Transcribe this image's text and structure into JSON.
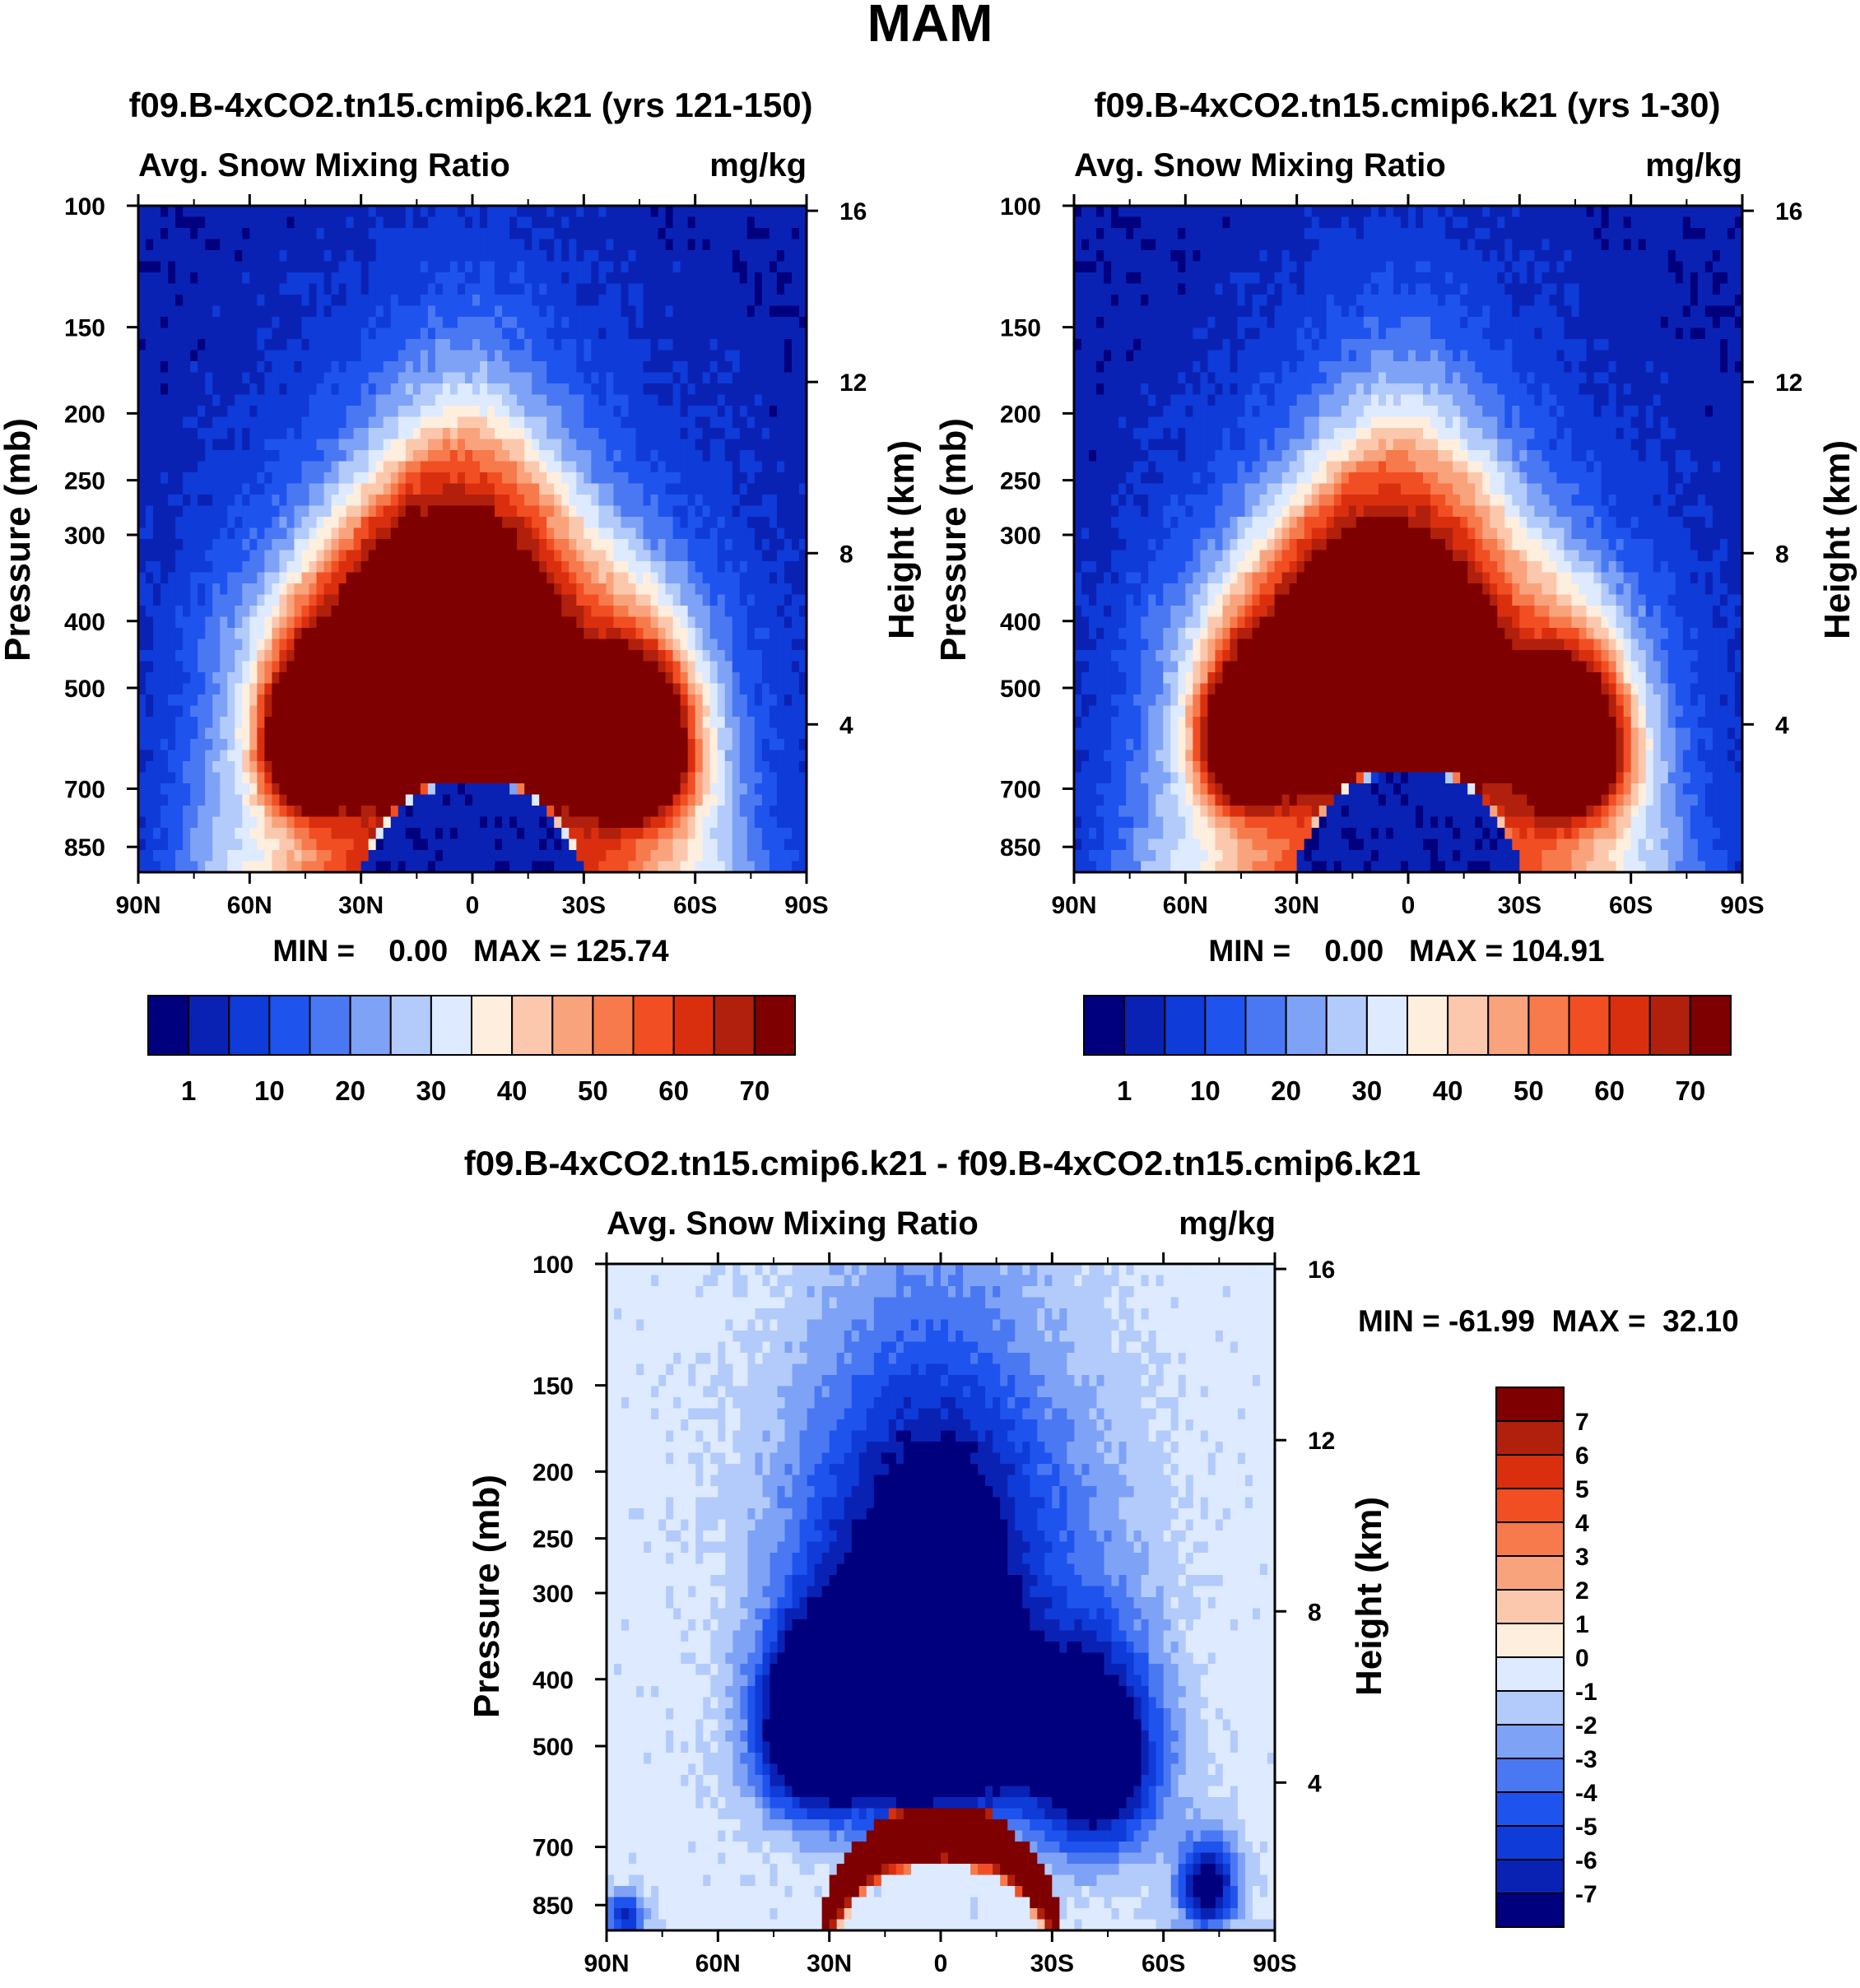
{
  "figure": {
    "title": "MAM"
  },
  "colors": {
    "abs_palette": [
      "#00007f",
      "#0a22b4",
      "#0f3bd8",
      "#1f53ee",
      "#4a78f2",
      "#7ea2f5",
      "#b3cbfa",
      "#ddeaff",
      "#feeede",
      "#fcc8ad",
      "#f9a37c",
      "#f77a4c",
      "#f14e24",
      "#da2f0f",
      "#b0200c",
      "#7e0000"
    ],
    "diff_palette": [
      "#7e0000",
      "#b0200c",
      "#da2f0f",
      "#f14e24",
      "#f77a4c",
      "#f9a37c",
      "#fcc8ad",
      "#feeede",
      "#ddeaff",
      "#b3cbfa",
      "#7ea2f5",
      "#4a78f2",
      "#1f53ee",
      "#0f3bd8",
      "#0a22b4",
      "#00007f"
    ]
  },
  "chart_data": [
    {
      "type": "heatmap",
      "id": "panel_a",
      "title": "f09.B-4xCO2.tn15.cmip6.k21 (yrs 121-150)",
      "subtitle_left": "Avg. Snow Mixing Ratio",
      "subtitle_right": "mg/kg",
      "xlabel": "",
      "ylabel": "Pressure (mb)",
      "ylabel_right": "Height (km)",
      "xlim": [
        90,
        -90
      ],
      "ylim_mb": [
        100,
        925
      ],
      "x_tick_labels": [
        "90N",
        "60N",
        "30N",
        "0",
        "30S",
        "60S",
        "90S"
      ],
      "y_tick_labels": [
        "100",
        "150",
        "200",
        "250",
        "300",
        "400",
        "500",
        "700",
        "850"
      ],
      "height_tick_labels": [
        "16",
        "12",
        "8",
        "4"
      ],
      "min_max_text": "MIN =    0.00   MAX = 125.74",
      "levels": [
        1,
        5,
        10,
        15,
        20,
        25,
        30,
        35,
        40,
        45,
        50,
        55,
        60,
        65,
        70
      ],
      "colorbar_labels": [
        "1",
        "10",
        "20",
        "30",
        "40",
        "50",
        "60",
        "70"
      ],
      "variant": "late",
      "max_value": 125.74
    },
    {
      "type": "heatmap",
      "id": "panel_b",
      "title": "f09.B-4xCO2.tn15.cmip6.k21 (yrs 1-30)",
      "subtitle_left": "Avg. Snow Mixing Ratio",
      "subtitle_right": "mg/kg",
      "xlabel": "",
      "ylabel": "Pressure (mb)",
      "ylabel_right": "Height (km)",
      "xlim": [
        90,
        -90
      ],
      "ylim_mb": [
        100,
        925
      ],
      "x_tick_labels": [
        "90N",
        "60N",
        "30N",
        "0",
        "30S",
        "60S",
        "90S"
      ],
      "y_tick_labels": [
        "100",
        "150",
        "200",
        "250",
        "300",
        "400",
        "500",
        "700",
        "850"
      ],
      "height_tick_labels": [
        "16",
        "12",
        "8",
        "4"
      ],
      "min_max_text": "MIN =    0.00   MAX = 104.91",
      "levels": [
        1,
        5,
        10,
        15,
        20,
        25,
        30,
        35,
        40,
        45,
        50,
        55,
        60,
        65,
        70
      ],
      "colorbar_labels": [
        "1",
        "10",
        "20",
        "30",
        "40",
        "50",
        "60",
        "70"
      ],
      "variant": "early",
      "max_value": 104.91
    },
    {
      "type": "heatmap",
      "id": "panel_diff",
      "title": "f09.B-4xCO2.tn15.cmip6.k21 - f09.B-4xCO2.tn15.cmip6.k21",
      "subtitle_left": "Avg. Snow Mixing Ratio",
      "subtitle_right": "mg/kg",
      "xlabel": "",
      "ylabel": "Pressure (mb)",
      "ylabel_right": "Height (km)",
      "xlim": [
        90,
        -90
      ],
      "ylim_mb": [
        100,
        925
      ],
      "x_tick_labels": [
        "90N",
        "60N",
        "30N",
        "0",
        "30S",
        "60S",
        "90S"
      ],
      "y_tick_labels": [
        "100",
        "150",
        "200",
        "250",
        "300",
        "400",
        "500",
        "700",
        "850"
      ],
      "height_tick_labels": [
        "16",
        "12",
        "8",
        "4"
      ],
      "min_max_text": "MIN = -61.99  MAX =  32.10",
      "levels": [
        -7,
        -6,
        -5,
        -4,
        -3,
        -2,
        -1,
        0,
        1,
        2,
        3,
        4,
        5,
        6,
        7
      ],
      "colorbar_labels": [
        "7",
        "6",
        "5",
        "4",
        "3",
        "2",
        "1",
        "0",
        "-1",
        "-2",
        "-3",
        "-4",
        "-5",
        "-6",
        "-7"
      ],
      "variant": "diff",
      "min_value": -61.99,
      "max_value": 32.1
    }
  ]
}
